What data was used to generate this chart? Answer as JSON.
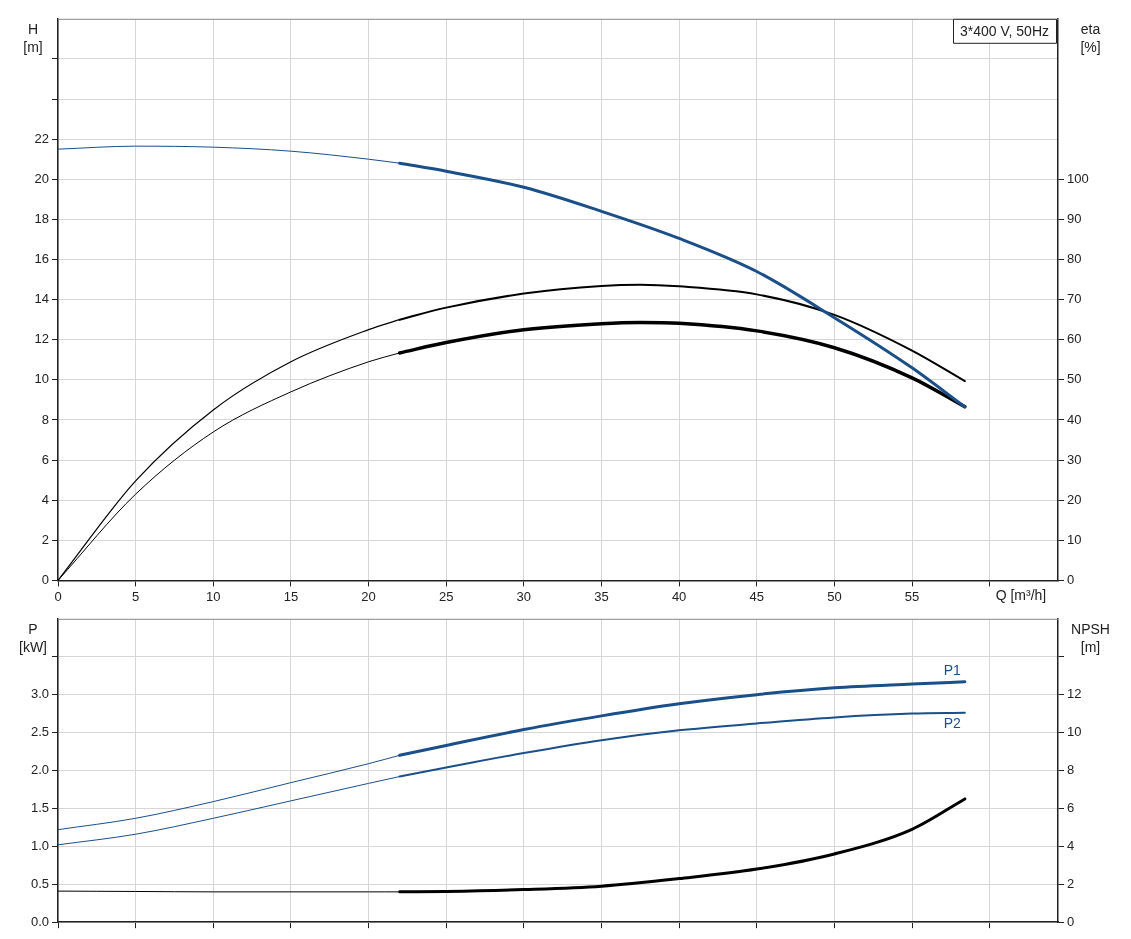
{
  "chart_data": [
    {
      "type": "line",
      "title": "3*400 V, 50Hz",
      "xlabel": "Q [m³/h]",
      "ylabel": "H [m]",
      "y2label": "eta [%]",
      "grid": true,
      "xlim": [
        0,
        64.4
      ],
      "ylim": [
        0,
        28
      ],
      "y2lim": [
        0,
        140
      ],
      "xticks": [
        0,
        5,
        10,
        15,
        20,
        25,
        30,
        35,
        40,
        45,
        50,
        55,
        {
          "value": 60,
          "label": null
        }
      ],
      "yticks": [
        0,
        2,
        4,
        6,
        8,
        10,
        12,
        14,
        16,
        18,
        20,
        22,
        {
          "value": 24,
          "label": null
        },
        {
          "value": 26,
          "label": null
        }
      ],
      "y2ticks": [
        0,
        10,
        20,
        30,
        40,
        50,
        60,
        70,
        80,
        90,
        100
      ],
      "series": [
        {
          "color": "#1a4f8a",
          "x": [
            0,
            5,
            10,
            15,
            20,
            22
          ],
          "values": [
            21.5,
            21.65,
            21.6,
            21.4,
            21.0,
            20.8
          ]
        },
        {
          "color": "#1a4f8a",
          "x": [
            22,
            25,
            30,
            35,
            40,
            45,
            50,
            55,
            58.4
          ],
          "values": [
            20.8,
            20.4,
            19.6,
            18.4,
            17.05,
            15.4,
            13.1,
            10.6,
            8.65
          ]
        },
        {
          "color": "#000000",
          "axis": "y2",
          "x": [
            0,
            5,
            10,
            15,
            20,
            22
          ],
          "values": [
            0,
            24.8,
            42.5,
            54.5,
            62.5,
            65
          ]
        },
        {
          "color": "#000000",
          "axis": "y2",
          "x": [
            22,
            25,
            30,
            35,
            37.5,
            40,
            45,
            50,
            55,
            58.4
          ],
          "values": [
            65,
            68,
            71.5,
            73.4,
            73.7,
            73.3,
            71.3,
            66.2,
            57.3,
            49.7
          ]
        },
        {
          "color": "#000000",
          "axis": "y2",
          "x": [
            0,
            5,
            10,
            15,
            20,
            22
          ],
          "values": [
            0,
            21.5,
            37,
            47,
            54.5,
            56.7
          ]
        },
        {
          "color": "#000000",
          "axis": "y2",
          "x": [
            22,
            25,
            30,
            35,
            37.5,
            40,
            45,
            50,
            55,
            58.4
          ],
          "values": [
            56.7,
            59.3,
            62.5,
            64,
            64.3,
            64.1,
            62.2,
            58,
            50.5,
            43.3
          ]
        }
      ]
    },
    {
      "type": "line",
      "ylabel": "P [kW]",
      "y2label": "NPSH [m]",
      "grid": true,
      "tick_labels": "y",
      "xlim": [
        0,
        64.4
      ],
      "ylim": [
        0,
        4
      ],
      "y2lim": [
        0,
        16
      ],
      "xticks": [
        0,
        5,
        10,
        15,
        20,
        25,
        30,
        35,
        40,
        45,
        50,
        55,
        60
      ],
      "yticks": [
        {
          "value": 0,
          "label": "0.0"
        },
        {
          "value": 0.5,
          "label": "0.5"
        },
        {
          "value": 1,
          "label": "1.0"
        },
        {
          "value": 1.5,
          "label": "1.5"
        },
        {
          "value": 2,
          "label": "2.0"
        },
        {
          "value": 2.5,
          "label": "2.5"
        },
        {
          "value": 3,
          "label": "3.0"
        },
        {
          "value": 3.5,
          "label": null
        }
      ],
      "y2ticks": [
        0,
        2,
        4,
        6,
        8,
        10,
        12,
        {
          "value": 14,
          "label": null
        }
      ],
      "series": [
        {
          "color": "#1a4f8a",
          "x": [
            0,
            5,
            10,
            15,
            20,
            22
          ],
          "values": [
            1.22,
            1.37,
            1.59,
            1.84,
            2.09,
            2.2
          ]
        },
        {
          "name": "P1",
          "color": "#1a4f8a",
          "x": [
            22,
            25,
            30,
            35,
            40,
            45,
            50,
            55,
            58.4
          ],
          "values": [
            2.2,
            2.33,
            2.54,
            2.72,
            2.88,
            3.0,
            3.09,
            3.14,
            3.17
          ]
        },
        {
          "color": "#1a4f8a",
          "x": [
            0,
            5,
            10,
            15,
            20,
            22
          ],
          "values": [
            1.02,
            1.16,
            1.37,
            1.6,
            1.83,
            1.92
          ]
        },
        {
          "name": "P2",
          "color": "#1a4f8a",
          "x": [
            22,
            25,
            30,
            35,
            40,
            45,
            50,
            55,
            58.4
          ],
          "values": [
            1.92,
            2.04,
            2.23,
            2.4,
            2.53,
            2.62,
            2.7,
            2.75,
            2.76
          ]
        },
        {
          "color": "#000000",
          "axis": "y2",
          "x": [
            0,
            5,
            10,
            15,
            20,
            22
          ],
          "values": [
            1.64,
            1.62,
            1.6,
            1.6,
            1.6,
            1.6
          ]
        },
        {
          "color": "#000000",
          "axis": "y2",
          "x": [
            22,
            25,
            30,
            35,
            40,
            45,
            50,
            55,
            58.4
          ],
          "values": [
            1.6,
            1.62,
            1.72,
            1.9,
            2.3,
            2.8,
            3.6,
            4.9,
            6.5
          ]
        }
      ]
    }
  ]
}
